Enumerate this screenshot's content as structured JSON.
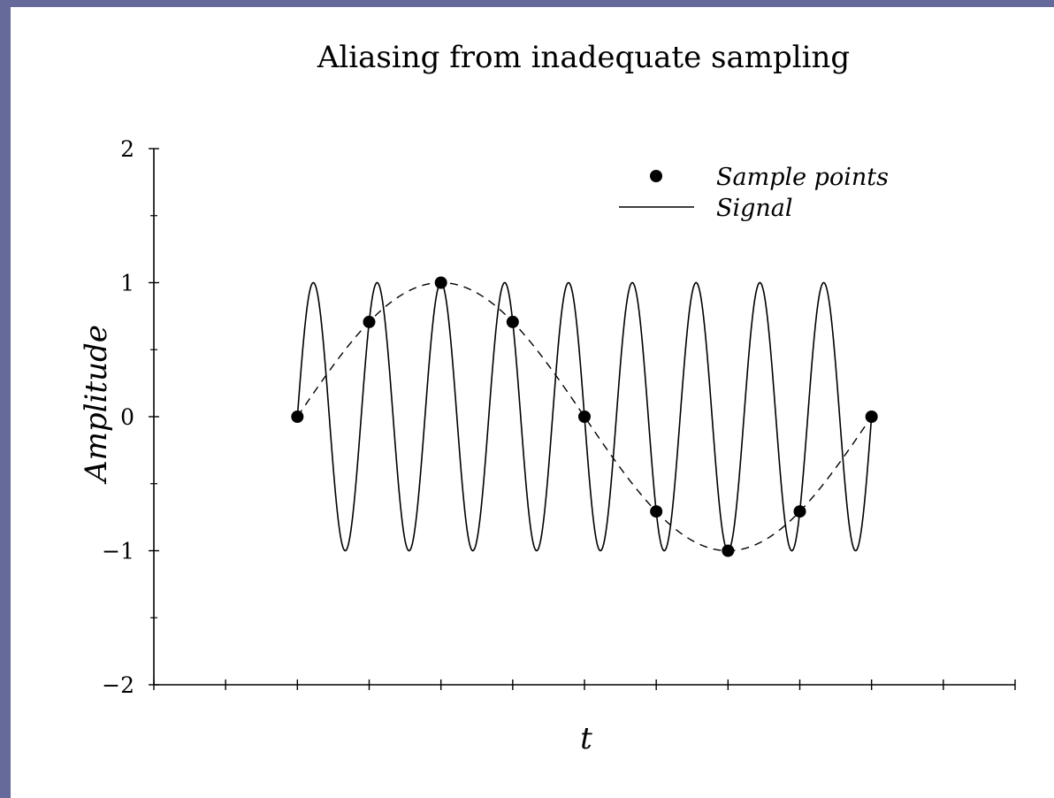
{
  "colors": {
    "page_border": "#656a9a",
    "background": "#ffffff",
    "ink": "#000000"
  },
  "chart_data": {
    "type": "line",
    "title": "Aliasing from inadequate sampling",
    "xlabel": "t",
    "ylabel": "Amplitude",
    "xlim": [
      -2,
      10
    ],
    "ylim": [
      -2,
      2
    ],
    "x_ticks": [
      -2,
      -1,
      0,
      1,
      2,
      3,
      4,
      5,
      6,
      7,
      8,
      9,
      10
    ],
    "y_ticks": [
      {
        "value": 2,
        "label": "2"
      },
      {
        "value": 1,
        "label": "1"
      },
      {
        "value": 0,
        "label": "0"
      },
      {
        "value": -1,
        "label": "−1"
      },
      {
        "value": -2,
        "label": "−2"
      }
    ],
    "grid": false,
    "legend_position": "top-right",
    "series": [
      {
        "name": "Signal",
        "style": "solid",
        "x_start": 0,
        "x_end": 8,
        "amplitude": 1,
        "cycles": 9
      },
      {
        "name": "Sample points",
        "style": "markers",
        "x": [
          0,
          1,
          2,
          3,
          4,
          5,
          6,
          7,
          8
        ],
        "y": [
          0,
          0.707,
          1,
          0.707,
          0,
          -0.707,
          -1,
          -0.707,
          0
        ]
      },
      {
        "style": "dashed",
        "x_start": 0,
        "x_end": 8,
        "amplitude": 1,
        "cycles": 1
      }
    ]
  }
}
